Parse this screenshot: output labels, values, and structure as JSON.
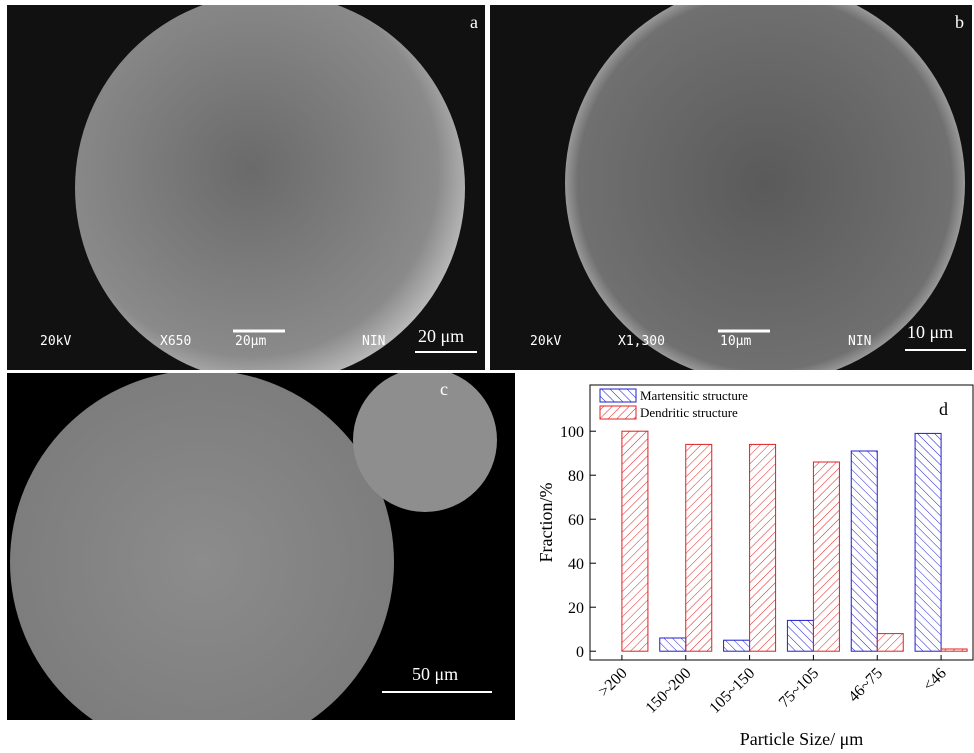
{
  "panels": [
    {
      "label": "a",
      "scale_bar": "20 μm",
      "info": [
        "20kV",
        "X650",
        "20μm",
        "NIN"
      ]
    },
    {
      "label": "b",
      "scale_bar": "10 μm",
      "info": [
        "20kV",
        "X1,300",
        "10μm",
        "NIN"
      ]
    },
    {
      "label": "c",
      "scale_bar": "50 μm"
    }
  ],
  "chart_data": {
    "type": "bar",
    "panel_label": "d",
    "xlabel": "Particle Size/ μm",
    "ylabel": "Fraction/%",
    "categories": [
      ">200",
      "150~200",
      "105~150",
      "75~105",
      "46~75",
      "<46"
    ],
    "series": [
      {
        "name": "Martensitic structure",
        "color": "#1f1fd0",
        "values": [
          0,
          6,
          5,
          14,
          91,
          99
        ]
      },
      {
        "name": "Dendritic structure",
        "color": "#e02020",
        "values": [
          100,
          94,
          94,
          86,
          8,
          1
        ]
      }
    ],
    "ylim": [
      -4,
      121
    ],
    "yticks": [
      0,
      20,
      40,
      60,
      80,
      100
    ],
    "legend": "top-left"
  }
}
